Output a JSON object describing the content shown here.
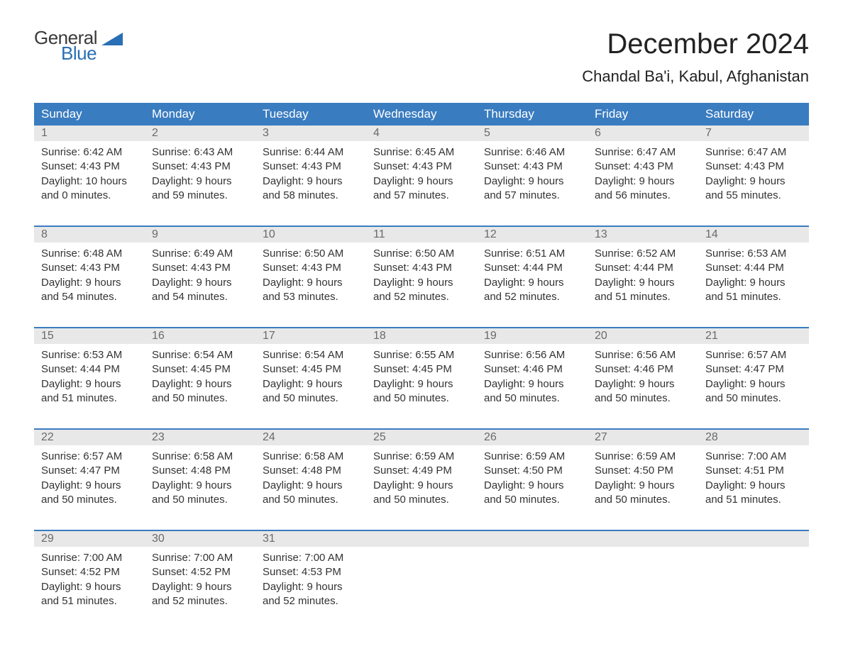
{
  "brand": {
    "word1": "General",
    "word2": "Blue",
    "brand_color": "#2a6fb5"
  },
  "title": "December 2024",
  "location": "Chandal Ba'i, Kabul, Afghanistan",
  "colors": {
    "header_bg": "#3a7cc0",
    "header_text": "#ffffff",
    "daynum_bg": "#e8e8e8",
    "daynum_text": "#6a6a6a",
    "rule": "#3a7cc0",
    "body_text": "#333333",
    "page_bg": "#ffffff"
  },
  "layout": {
    "columns": 7,
    "title_fontsize": 40,
    "location_fontsize": 22,
    "header_fontsize": 17,
    "cell_fontsize": 15,
    "daynum_fontsize": 16
  },
  "day_labels": [
    "Sunday",
    "Monday",
    "Tuesday",
    "Wednesday",
    "Thursday",
    "Friday",
    "Saturday"
  ],
  "weeks": [
    [
      {
        "n": "1",
        "sunrise": "Sunrise: 6:42 AM",
        "sunset": "Sunset: 4:43 PM",
        "d1": "Daylight: 10 hours",
        "d2": "and 0 minutes."
      },
      {
        "n": "2",
        "sunrise": "Sunrise: 6:43 AM",
        "sunset": "Sunset: 4:43 PM",
        "d1": "Daylight: 9 hours",
        "d2": "and 59 minutes."
      },
      {
        "n": "3",
        "sunrise": "Sunrise: 6:44 AM",
        "sunset": "Sunset: 4:43 PM",
        "d1": "Daylight: 9 hours",
        "d2": "and 58 minutes."
      },
      {
        "n": "4",
        "sunrise": "Sunrise: 6:45 AM",
        "sunset": "Sunset: 4:43 PM",
        "d1": "Daylight: 9 hours",
        "d2": "and 57 minutes."
      },
      {
        "n": "5",
        "sunrise": "Sunrise: 6:46 AM",
        "sunset": "Sunset: 4:43 PM",
        "d1": "Daylight: 9 hours",
        "d2": "and 57 minutes."
      },
      {
        "n": "6",
        "sunrise": "Sunrise: 6:47 AM",
        "sunset": "Sunset: 4:43 PM",
        "d1": "Daylight: 9 hours",
        "d2": "and 56 minutes."
      },
      {
        "n": "7",
        "sunrise": "Sunrise: 6:47 AM",
        "sunset": "Sunset: 4:43 PM",
        "d1": "Daylight: 9 hours",
        "d2": "and 55 minutes."
      }
    ],
    [
      {
        "n": "8",
        "sunrise": "Sunrise: 6:48 AM",
        "sunset": "Sunset: 4:43 PM",
        "d1": "Daylight: 9 hours",
        "d2": "and 54 minutes."
      },
      {
        "n": "9",
        "sunrise": "Sunrise: 6:49 AM",
        "sunset": "Sunset: 4:43 PM",
        "d1": "Daylight: 9 hours",
        "d2": "and 54 minutes."
      },
      {
        "n": "10",
        "sunrise": "Sunrise: 6:50 AM",
        "sunset": "Sunset: 4:43 PM",
        "d1": "Daylight: 9 hours",
        "d2": "and 53 minutes."
      },
      {
        "n": "11",
        "sunrise": "Sunrise: 6:50 AM",
        "sunset": "Sunset: 4:43 PM",
        "d1": "Daylight: 9 hours",
        "d2": "and 52 minutes."
      },
      {
        "n": "12",
        "sunrise": "Sunrise: 6:51 AM",
        "sunset": "Sunset: 4:44 PM",
        "d1": "Daylight: 9 hours",
        "d2": "and 52 minutes."
      },
      {
        "n": "13",
        "sunrise": "Sunrise: 6:52 AM",
        "sunset": "Sunset: 4:44 PM",
        "d1": "Daylight: 9 hours",
        "d2": "and 51 minutes."
      },
      {
        "n": "14",
        "sunrise": "Sunrise: 6:53 AM",
        "sunset": "Sunset: 4:44 PM",
        "d1": "Daylight: 9 hours",
        "d2": "and 51 minutes."
      }
    ],
    [
      {
        "n": "15",
        "sunrise": "Sunrise: 6:53 AM",
        "sunset": "Sunset: 4:44 PM",
        "d1": "Daylight: 9 hours",
        "d2": "and 51 minutes."
      },
      {
        "n": "16",
        "sunrise": "Sunrise: 6:54 AM",
        "sunset": "Sunset: 4:45 PM",
        "d1": "Daylight: 9 hours",
        "d2": "and 50 minutes."
      },
      {
        "n": "17",
        "sunrise": "Sunrise: 6:54 AM",
        "sunset": "Sunset: 4:45 PM",
        "d1": "Daylight: 9 hours",
        "d2": "and 50 minutes."
      },
      {
        "n": "18",
        "sunrise": "Sunrise: 6:55 AM",
        "sunset": "Sunset: 4:45 PM",
        "d1": "Daylight: 9 hours",
        "d2": "and 50 minutes."
      },
      {
        "n": "19",
        "sunrise": "Sunrise: 6:56 AM",
        "sunset": "Sunset: 4:46 PM",
        "d1": "Daylight: 9 hours",
        "d2": "and 50 minutes."
      },
      {
        "n": "20",
        "sunrise": "Sunrise: 6:56 AM",
        "sunset": "Sunset: 4:46 PM",
        "d1": "Daylight: 9 hours",
        "d2": "and 50 minutes."
      },
      {
        "n": "21",
        "sunrise": "Sunrise: 6:57 AM",
        "sunset": "Sunset: 4:47 PM",
        "d1": "Daylight: 9 hours",
        "d2": "and 50 minutes."
      }
    ],
    [
      {
        "n": "22",
        "sunrise": "Sunrise: 6:57 AM",
        "sunset": "Sunset: 4:47 PM",
        "d1": "Daylight: 9 hours",
        "d2": "and 50 minutes."
      },
      {
        "n": "23",
        "sunrise": "Sunrise: 6:58 AM",
        "sunset": "Sunset: 4:48 PM",
        "d1": "Daylight: 9 hours",
        "d2": "and 50 minutes."
      },
      {
        "n": "24",
        "sunrise": "Sunrise: 6:58 AM",
        "sunset": "Sunset: 4:48 PM",
        "d1": "Daylight: 9 hours",
        "d2": "and 50 minutes."
      },
      {
        "n": "25",
        "sunrise": "Sunrise: 6:59 AM",
        "sunset": "Sunset: 4:49 PM",
        "d1": "Daylight: 9 hours",
        "d2": "and 50 minutes."
      },
      {
        "n": "26",
        "sunrise": "Sunrise: 6:59 AM",
        "sunset": "Sunset: 4:50 PM",
        "d1": "Daylight: 9 hours",
        "d2": "and 50 minutes."
      },
      {
        "n": "27",
        "sunrise": "Sunrise: 6:59 AM",
        "sunset": "Sunset: 4:50 PM",
        "d1": "Daylight: 9 hours",
        "d2": "and 50 minutes."
      },
      {
        "n": "28",
        "sunrise": "Sunrise: 7:00 AM",
        "sunset": "Sunset: 4:51 PM",
        "d1": "Daylight: 9 hours",
        "d2": "and 51 minutes."
      }
    ],
    [
      {
        "n": "29",
        "sunrise": "Sunrise: 7:00 AM",
        "sunset": "Sunset: 4:52 PM",
        "d1": "Daylight: 9 hours",
        "d2": "and 51 minutes."
      },
      {
        "n": "30",
        "sunrise": "Sunrise: 7:00 AM",
        "sunset": "Sunset: 4:52 PM",
        "d1": "Daylight: 9 hours",
        "d2": "and 52 minutes."
      },
      {
        "n": "31",
        "sunrise": "Sunrise: 7:00 AM",
        "sunset": "Sunset: 4:53 PM",
        "d1": "Daylight: 9 hours",
        "d2": "and 52 minutes."
      },
      null,
      null,
      null,
      null
    ]
  ]
}
